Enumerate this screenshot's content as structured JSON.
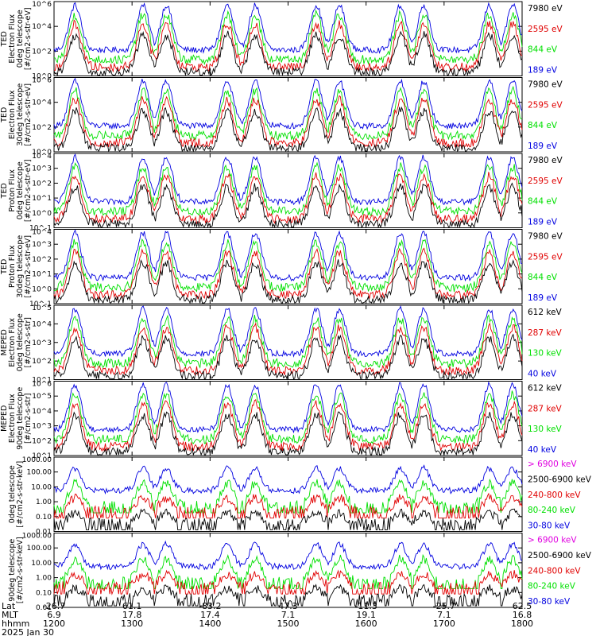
{
  "colors": {
    "black": "#000000",
    "red": "#e00000",
    "green": "#00e000",
    "blue": "#0000e0",
    "magenta": "#e000e0"
  },
  "x_axis": {
    "ticks": [
      {
        "lat": "-26.7",
        "mlt": "6.9",
        "time": "1200"
      },
      {
        "lat": "61.1",
        "mlt": "17.8",
        "time": "1300"
      },
      {
        "lat": "-83.2",
        "mlt": "17.4",
        "time": "1400"
      },
      {
        "lat": "47.3",
        "mlt": "7.1",
        "time": "1500"
      },
      {
        "lat": "-11.3",
        "mlt": "19.1",
        "time": "1600"
      },
      {
        "lat": "-25.7",
        "mlt": "7.1",
        "time": "1700"
      },
      {
        "lat": "62.5",
        "mlt": "16.8",
        "time": "1800"
      }
    ],
    "row_labels": [
      "Lat",
      "MLT",
      "hhmm"
    ],
    "date": "2025 Jan 30"
  },
  "chart_data": [
    {
      "type": "line",
      "ylabel": [
        "TED",
        "Electron Flux",
        "0deg telescope",
        "[#/cm2-s-str-eV]"
      ],
      "yscale": "log",
      "ylim": [
        1,
        1000000
      ],
      "ytick_labels": [
        "10^0",
        "10^2",
        "10^4",
        "10^6"
      ],
      "legend": [
        {
          "text": "7980 eV",
          "color": "#000000"
        },
        {
          "text": "2595 eV",
          "color": "#e00000"
        },
        {
          "text": "844 eV",
          "color": "#00e000"
        },
        {
          "text": "189 eV",
          "color": "#0000e0"
        }
      ]
    },
    {
      "type": "line",
      "ylabel": [
        "TED",
        "Electron Flux",
        "30deg telescope",
        "[#/cm2-s-str-eV]"
      ],
      "yscale": "log",
      "ylim": [
        1,
        1000000
      ],
      "ytick_labels": [
        "10^0",
        "10^2",
        "10^4",
        "10^6"
      ],
      "legend": [
        {
          "text": "7980 eV",
          "color": "#000000"
        },
        {
          "text": "2595 eV",
          "color": "#e00000"
        },
        {
          "text": "844 eV",
          "color": "#00e000"
        },
        {
          "text": "189 eV",
          "color": "#0000e0"
        }
      ]
    },
    {
      "type": "line",
      "ylabel": [
        "TED",
        "Proton Flux",
        "0deg telescope",
        "[#/cm2-s-str-eV]"
      ],
      "yscale": "log",
      "ylim": [
        0.1,
        10000
      ],
      "ytick_labels": [
        "10^-1",
        "10^0",
        "10^1",
        "10^2",
        "10^3",
        "10^4"
      ],
      "legend": [
        {
          "text": "7980 eV",
          "color": "#000000"
        },
        {
          "text": "2595 eV",
          "color": "#e00000"
        },
        {
          "text": "844 eV",
          "color": "#00e000"
        },
        {
          "text": "189 eV",
          "color": "#0000e0"
        }
      ]
    },
    {
      "type": "line",
      "ylabel": [
        "TED",
        "Proton Flux",
        "30deg telescope",
        "[#/cm2-s-str-eV]"
      ],
      "yscale": "log",
      "ylim": [
        0.1,
        10000
      ],
      "ytick_labels": [
        "10^-1",
        "10^0",
        "10^1",
        "10^2",
        "10^3",
        "10^4"
      ],
      "legend": [
        {
          "text": "7980 eV",
          "color": "#000000"
        },
        {
          "text": "2595 eV",
          "color": "#e00000"
        },
        {
          "text": "844 eV",
          "color": "#00e000"
        },
        {
          "text": "189 eV",
          "color": "#0000e0"
        }
      ]
    },
    {
      "type": "line",
      "ylabel": [
        "MEPED",
        "Electron Flux",
        "0deg telescope",
        "[#/cm2-s-str]"
      ],
      "yscale": "log",
      "ylim": [
        10,
        100000
      ],
      "ytick_labels": [
        "10^1",
        "10^2",
        "10^3",
        "10^4",
        "10^5"
      ],
      "legend": [
        {
          "text": "612 keV",
          "color": "#000000"
        },
        {
          "text": "287 keV",
          "color": "#e00000"
        },
        {
          "text": "130 keV",
          "color": "#00e000"
        },
        {
          "text": "40 keV",
          "color": "#0000e0"
        }
      ]
    },
    {
      "type": "line",
      "ylabel": [
        "MEPED",
        "Electron Flux",
        "90deg telescope",
        "[#/cm2-s-str]"
      ],
      "yscale": "log",
      "ylim": [
        10,
        1000000
      ],
      "ytick_labels": [
        "10^1",
        "10^2",
        "10^3",
        "10^4",
        "10^5",
        "10^6"
      ],
      "legend": [
        {
          "text": "612 keV",
          "color": "#000000"
        },
        {
          "text": "287 keV",
          "color": "#e00000"
        },
        {
          "text": "130 keV",
          "color": "#00e000"
        },
        {
          "text": "40 keV",
          "color": "#0000e0"
        }
      ]
    },
    {
      "type": "line",
      "ylabel": [
        "0deg telescope",
        "[#/cm2-s-str-keV]"
      ],
      "yscale": "log",
      "ylim": [
        0.01,
        1000
      ],
      "ytick_labels": [
        "0.01",
        "0.10",
        "1.00",
        "10.00",
        "100.00",
        "1000.00"
      ],
      "legend": [
        {
          "text": "> 6900 keV",
          "color": "#e000e0"
        },
        {
          "text": "2500-6900 keV",
          "color": "#000000"
        },
        {
          "text": "240-800 keV",
          "color": "#e00000"
        },
        {
          "text": "80-240 keV",
          "color": "#00e000"
        },
        {
          "text": "30-80 keV",
          "color": "#0000e0"
        }
      ]
    },
    {
      "type": "line",
      "ylabel": [
        "90deg telescope",
        "[#/cm2-s-str-keV]"
      ],
      "yscale": "log",
      "ylim": [
        0.01,
        1000
      ],
      "ytick_labels": [
        "0.01",
        "0.10",
        "1.00",
        "10.00",
        "100.00",
        "1000.00"
      ],
      "legend": [
        {
          "text": "> 6900 keV",
          "color": "#e000e0"
        },
        {
          "text": "2500-6900 keV",
          "color": "#000000"
        },
        {
          "text": "240-800 keV",
          "color": "#e00000"
        },
        {
          "text": "80-240 keV",
          "color": "#00e000"
        },
        {
          "text": "30-80 keV",
          "color": "#0000e0"
        }
      ]
    }
  ]
}
